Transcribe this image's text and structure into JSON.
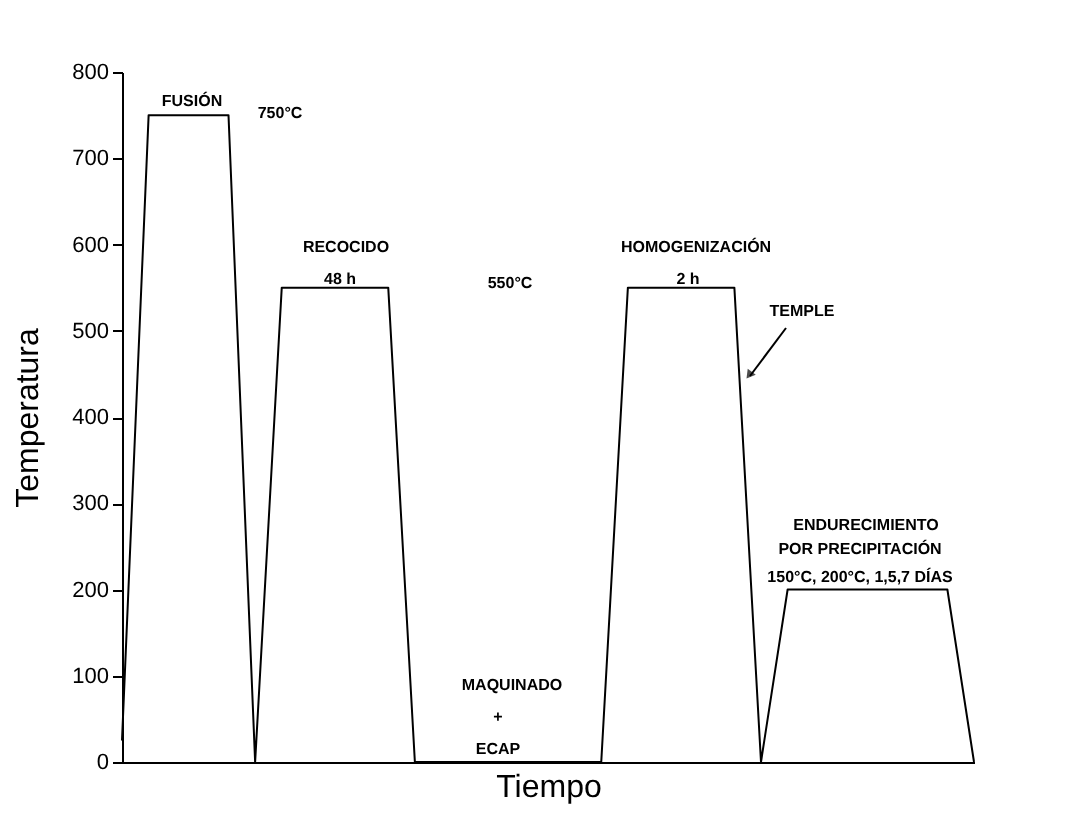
{
  "chart_data": {
    "type": "line",
    "xlabel": "Tiempo",
    "ylabel": "Temperatura",
    "categories": [
      null,
      null,
      null,
      null,
      null,
      null,
      null,
      null,
      null,
      null,
      null,
      null,
      null,
      null,
      null,
      null,
      null,
      null,
      null,
      null,
      null,
      null,
      null,
      null,
      null,
      null,
      null,
      null,
      null,
      null,
      null,
      null,
      null
    ],
    "series": [
      {
        "color": "#000000",
        "values": [
          25,
          750,
          750,
          750,
          750,
          0,
          550,
          550,
          550,
          550,
          550,
          0,
          0,
          0,
          0,
          0,
          0,
          0,
          0,
          550,
          550,
          550,
          550,
          550,
          0,
          200,
          200,
          200,
          200,
          200,
          200,
          200,
          0
        ]
      }
    ],
    "ylim": [
      0,
      800
    ],
    "yticks": [
      0,
      100,
      200,
      300,
      400,
      500,
      600,
      700,
      800
    ],
    "tick_labels": "y",
    "grid": false,
    "marker": "none",
    "line_style": "solid",
    "annotations": [
      "FUSIÓN",
      "750°C",
      "RECOCIDO",
      "48 h",
      "550°C",
      "HOMOGENIZACIÓN",
      "2 h",
      "TEMPLE",
      "ENDURECIMIENTO",
      "POR PRECIPITACIÓN",
      "150°C,  200°C, 1,5,7 DÍAS",
      "MAQUINADO",
      "+",
      "ECAP"
    ]
  }
}
